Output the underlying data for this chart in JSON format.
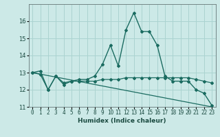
{
  "xlabel": "Humidex (Indice chaleur)",
  "ylabel": "",
  "bg_color": "#cce9e7",
  "grid_color": "#aad3d0",
  "line_color": "#1a6b60",
  "line1_x": [
    0,
    1,
    2,
    3,
    4,
    5,
    6,
    7,
    8,
    9,
    10,
    11,
    12,
    13,
    14,
    15,
    16,
    17,
    18,
    19,
    20,
    21,
    22,
    23
  ],
  "line1_y": [
    13.0,
    13.1,
    12.0,
    12.8,
    12.4,
    12.5,
    12.6,
    12.6,
    12.8,
    13.5,
    14.6,
    13.4,
    15.5,
    16.5,
    15.4,
    15.4,
    14.6,
    12.8,
    12.5,
    12.5,
    12.5,
    12.0,
    11.8,
    11.1
  ],
  "line2_x": [
    0,
    1,
    2,
    3,
    4,
    5,
    6,
    7,
    8,
    9,
    10,
    11,
    12,
    13,
    14,
    15,
    16,
    17,
    18,
    19,
    20,
    21,
    22,
    23
  ],
  "line2_y": [
    13.0,
    12.9,
    12.0,
    12.8,
    12.3,
    12.5,
    12.5,
    12.5,
    12.5,
    12.6,
    12.6,
    12.6,
    12.7,
    12.7,
    12.7,
    12.7,
    12.7,
    12.7,
    12.7,
    12.7,
    12.7,
    12.6,
    12.5,
    12.4
  ],
  "line3_x": [
    0,
    23
  ],
  "line3_y": [
    13.0,
    11.0
  ],
  "xlim": [
    -0.5,
    23.5
  ],
  "ylim": [
    11.0,
    17.0
  ],
  "yticks": [
    11,
    12,
    13,
    14,
    15,
    16
  ],
  "xticks": [
    0,
    1,
    2,
    3,
    4,
    5,
    6,
    7,
    8,
    9,
    10,
    11,
    12,
    13,
    14,
    15,
    16,
    17,
    18,
    19,
    20,
    21,
    22,
    23
  ],
  "tick_fontsize": 5.5,
  "xlabel_fontsize": 6.5,
  "ytick_fontsize": 6.0
}
